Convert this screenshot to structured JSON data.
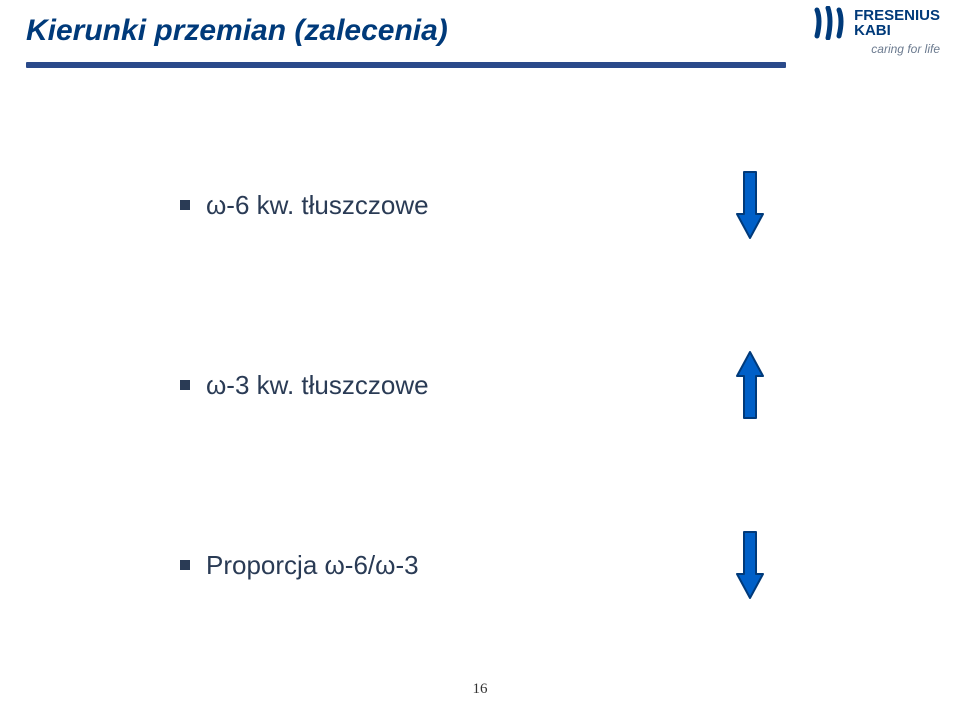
{
  "title": {
    "text": "Kierunki przemian (zalecenia)",
    "color": "#003a7a",
    "fontsize": 30
  },
  "header_line_color": "#2a4a8a",
  "logo": {
    "line1": "FRESENIUS",
    "line2": "KABI",
    "tagline": "caring for life",
    "wave_color": "#003a7a",
    "text_color": "#003a7a",
    "tagline_color": "#6b7a8f",
    "line_fontsize": 15,
    "tagline_fontsize": 12
  },
  "bullets": [
    {
      "text": "ω-6 kw. tłuszczowe",
      "arrow": "down"
    },
    {
      "text": "ω-3 kw. tłuszczowe",
      "arrow": "up"
    },
    {
      "text": "Proporcja ω-6/ω-3",
      "arrow": "down"
    }
  ],
  "bullet_style": {
    "text_color": "#2a3b55",
    "fontsize": 26,
    "square_color": "#2a3b55"
  },
  "arrow": {
    "fill": "#0060c8",
    "stroke": "#003a7a",
    "width": 30,
    "height": 70
  },
  "page_number": "16",
  "page_number_fontsize": 15
}
